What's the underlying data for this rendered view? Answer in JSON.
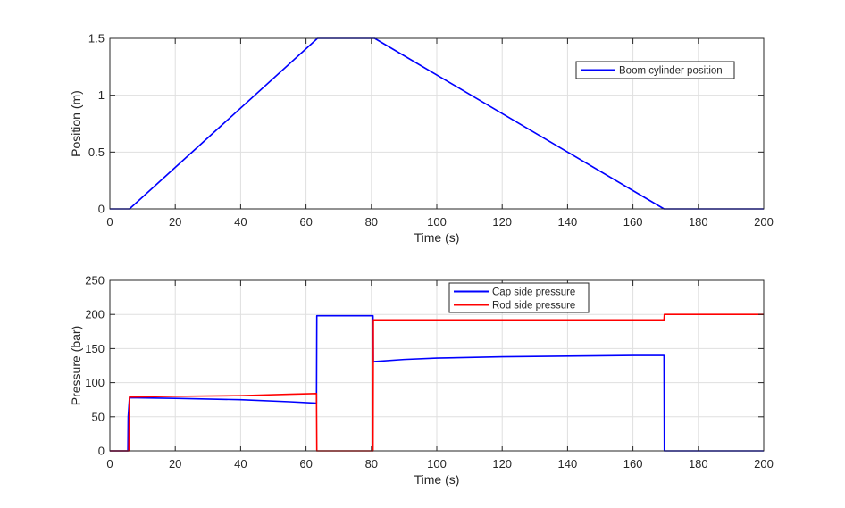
{
  "chart_data": [
    {
      "type": "line",
      "title": "",
      "xlabel": "Time (s)",
      "ylabel": "Position (m)",
      "xlim": [
        0,
        200
      ],
      "ylim": [
        0,
        1.5
      ],
      "xticks": [
        0,
        20,
        40,
        60,
        80,
        100,
        120,
        140,
        160,
        180,
        200
      ],
      "yticks": [
        0,
        0.5,
        1,
        1.5
      ],
      "xtick_labels": [
        "0",
        "20",
        "40",
        "60",
        "80",
        "100",
        "120",
        "140",
        "160",
        "180",
        "200"
      ],
      "ytick_labels": [
        "0",
        "0.5",
        "1",
        "1.5"
      ],
      "grid": true,
      "legend": "top-right",
      "series": [
        {
          "name": "Boom cylinder position",
          "color": "#0000ff",
          "x": [
            0,
            6,
            63.5,
            81,
            169.5,
            200
          ],
          "y": [
            0,
            0,
            1.5,
            1.5,
            0,
            0
          ]
        }
      ]
    },
    {
      "type": "line",
      "title": "",
      "xlabel": "Time (s)",
      "ylabel": "Pressure (bar)",
      "xlim": [
        0,
        200
      ],
      "ylim": [
        0,
        250
      ],
      "xticks": [
        0,
        20,
        40,
        60,
        80,
        100,
        120,
        140,
        160,
        180,
        200
      ],
      "yticks": [
        0,
        50,
        100,
        150,
        200,
        250
      ],
      "xtick_labels": [
        "0",
        "20",
        "40",
        "60",
        "80",
        "100",
        "120",
        "140",
        "160",
        "180",
        "200"
      ],
      "ytick_labels": [
        "0",
        "50",
        "100",
        "150",
        "200",
        "250"
      ],
      "grid": true,
      "legend": "top-center",
      "series": [
        {
          "name": "Cap side pressure",
          "color": "#0000ff",
          "x": [
            0,
            5.5,
            5.6,
            6,
            20,
            40,
            55,
            63.2,
            63.3,
            80.5,
            80.6,
            81,
            90,
            100,
            120,
            140,
            160,
            169.5,
            169.6,
            200
          ],
          "y": [
            0,
            0,
            50,
            78,
            77,
            75,
            72,
            70,
            198,
            198,
            130,
            131,
            134,
            136,
            138,
            139,
            140,
            140,
            0,
            0
          ]
        },
        {
          "name": "Rod side pressure",
          "color": "#ff0000",
          "x": [
            0,
            5.8,
            6,
            20,
            40,
            55,
            63.2,
            63.3,
            80.5,
            80.6,
            90,
            120,
            169.5,
            169.6,
            200
          ],
          "y": [
            0,
            0,
            79,
            80,
            81,
            83,
            84,
            0,
            0,
            192,
            192,
            192,
            192,
            200,
            200
          ]
        }
      ]
    }
  ]
}
